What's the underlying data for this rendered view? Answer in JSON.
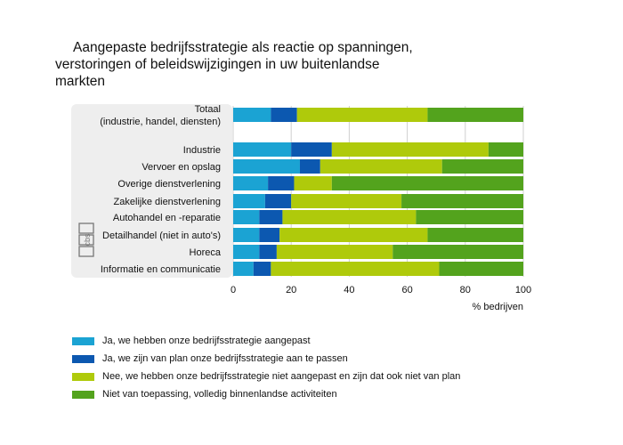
{
  "title": {
    "line1": "Aangepaste bedrijfsstrategie als reactie op spanningen,",
    "line2": "verstoringen of beleidswijzigingen in uw buitenlandse",
    "line3": "markten"
  },
  "logo": {
    "text": "cbs"
  },
  "colors": {
    "light_blue": "#1ba3d3",
    "dark_blue": "#0c58b0",
    "yellow_green": "#afca0b",
    "green": "#53a31d",
    "panel": "#eeeeee"
  },
  "chart_data": {
    "type": "bar",
    "orientation": "horizontal",
    "stacked": true,
    "title": "Aangepaste bedrijfsstrategie als reactie op spanningen, verstoringen of beleidswijzigingen in uw buitenlandse markten",
    "xlabel": "% bedrijven",
    "ylabel": "",
    "xlim": [
      0,
      100
    ],
    "xticks": [
      "0",
      "20",
      "40",
      "60",
      "80",
      "100"
    ],
    "grid": true,
    "legend_position": "bottom",
    "categories": [
      [
        "Totaal",
        "(industrie, handel, diensten)"
      ],
      [
        "Industrie"
      ],
      [
        "Vervoer en opslag"
      ],
      [
        "Overige dienstverlening"
      ],
      [
        "Zakelijke dienstverlening"
      ],
      [
        "Autohandel en -reparatie"
      ],
      [
        "Detailhandel (niet in auto's)"
      ],
      [
        "Horeca"
      ],
      [
        "Informatie en communicatie"
      ]
    ],
    "series": [
      {
        "name": "Ja, we hebben onze bedrijfsstrategie aangepast",
        "color": "#1ba3d3",
        "values": [
          13,
          20,
          23,
          12,
          11,
          9,
          9,
          9,
          7
        ]
      },
      {
        "name": "Ja, we zijn van plan onze bedrijfsstrategie aan te passen",
        "color": "#0c58b0",
        "values": [
          9,
          14,
          7,
          9,
          9,
          8,
          7,
          6,
          6
        ]
      },
      {
        "name": "Nee, we hebben onze bedrijfsstrategie niet aangepast en zijn dat ook niet van plan",
        "color": "#afca0b",
        "values": [
          45,
          54,
          42,
          13,
          38,
          46,
          51,
          40,
          58
        ]
      },
      {
        "name": "Niet van toepassing, volledig binnenlandse activiteiten",
        "color": "#53a31d",
        "values": [
          33,
          12,
          28,
          66,
          42,
          37,
          33,
          45,
          29
        ]
      }
    ]
  }
}
